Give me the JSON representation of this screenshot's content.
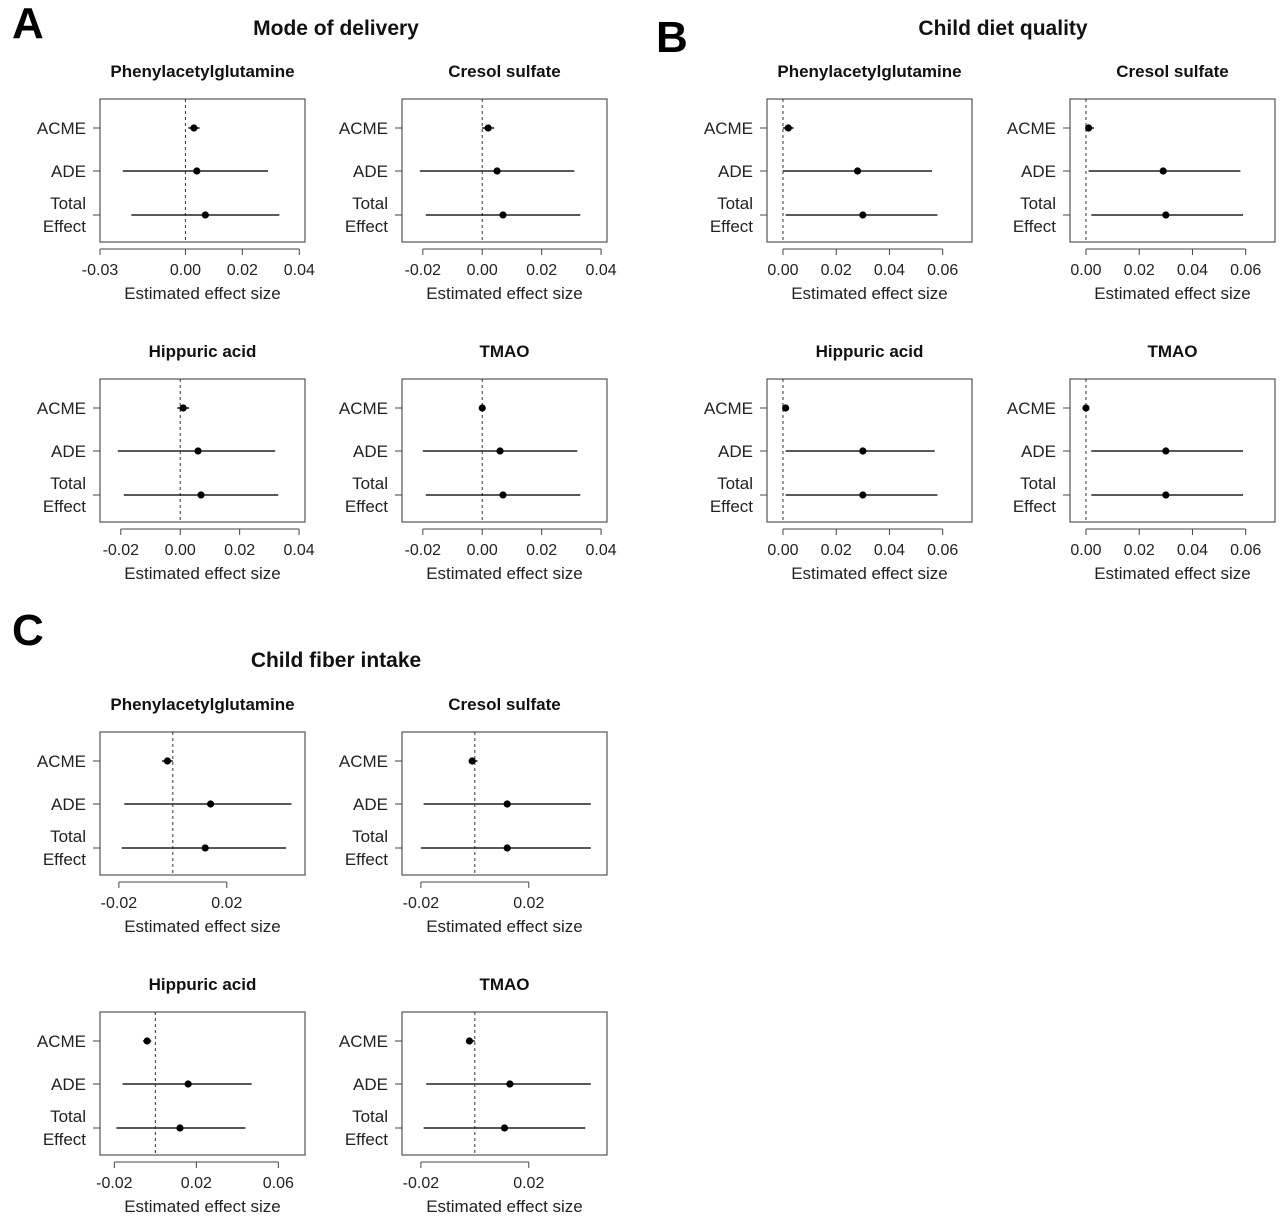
{
  "panels": [
    {
      "label": "A",
      "title": "Mode of delivery"
    },
    {
      "label": "B",
      "title": "Child diet quality"
    },
    {
      "label": "C",
      "title": "Child fiber intake"
    }
  ],
  "chart_data": [
    {
      "panel": "A",
      "type": "scatter",
      "title": "Phenylacetylglutamine",
      "xlabel": "Estimated effect size",
      "xlim": [
        -0.03,
        0.042
      ],
      "xticks": [
        "-0.03",
        "0.00",
        "0.02",
        "0.04"
      ],
      "ref_line": 0,
      "rows": [
        {
          "label": "ACME",
          "est": 0.003,
          "lo": 0.001,
          "hi": 0.005
        },
        {
          "label": "ADE",
          "est": 0.004,
          "lo": -0.022,
          "hi": 0.029
        },
        {
          "label": "Total Effect",
          "est": 0.007,
          "lo": -0.019,
          "hi": 0.033
        }
      ]
    },
    {
      "panel": "A",
      "type": "scatter",
      "title": "Cresol sulfate",
      "xlabel": "Estimated effect size",
      "xlim": [
        -0.027,
        0.042
      ],
      "xticks": [
        "-0.02",
        "0.00",
        "0.02",
        "0.04"
      ],
      "ref_line": 0,
      "rows": [
        {
          "label": "ACME",
          "est": 0.002,
          "lo": 0.0,
          "hi": 0.004
        },
        {
          "label": "ADE",
          "est": 0.005,
          "lo": -0.021,
          "hi": 0.031
        },
        {
          "label": "Total Effect",
          "est": 0.007,
          "lo": -0.019,
          "hi": 0.033
        }
      ]
    },
    {
      "panel": "A",
      "type": "scatter",
      "title": "Hippuric acid",
      "xlabel": "Estimated effect size",
      "xlim": [
        -0.027,
        0.042
      ],
      "xticks": [
        "-0.02",
        "0.00",
        "0.02",
        "0.04"
      ],
      "ref_line": 0,
      "rows": [
        {
          "label": "ACME",
          "est": 0.001,
          "lo": -0.001,
          "hi": 0.003
        },
        {
          "label": "ADE",
          "est": 0.006,
          "lo": -0.021,
          "hi": 0.032
        },
        {
          "label": "Total Effect",
          "est": 0.007,
          "lo": -0.019,
          "hi": 0.033
        }
      ]
    },
    {
      "panel": "A",
      "type": "scatter",
      "title": "TMAO",
      "xlabel": "Estimated effect size",
      "xlim": [
        -0.027,
        0.042
      ],
      "xticks": [
        "-0.02",
        "0.00",
        "0.02",
        "0.04"
      ],
      "ref_line": 0,
      "rows": [
        {
          "label": "ACME",
          "est": 0.0,
          "lo": -0.001,
          "hi": 0.001
        },
        {
          "label": "ADE",
          "est": 0.006,
          "lo": -0.02,
          "hi": 0.032
        },
        {
          "label": "Total Effect",
          "est": 0.007,
          "lo": -0.019,
          "hi": 0.033
        }
      ]
    },
    {
      "panel": "B",
      "type": "scatter",
      "title": "Phenylacetylglutamine",
      "xlabel": "Estimated effect size",
      "xlim": [
        -0.006,
        0.071
      ],
      "xticks": [
        "0.00",
        "0.02",
        "0.04",
        "0.06"
      ],
      "ref_line": 0,
      "rows": [
        {
          "label": "ACME",
          "est": 0.002,
          "lo": 0.0,
          "hi": 0.004
        },
        {
          "label": "ADE",
          "est": 0.028,
          "lo": 0.0,
          "hi": 0.056
        },
        {
          "label": "Total Effect",
          "est": 0.03,
          "lo": 0.001,
          "hi": 0.058
        }
      ]
    },
    {
      "panel": "B",
      "type": "scatter",
      "title": "Cresol sulfate",
      "xlabel": "Estimated effect size",
      "xlim": [
        -0.006,
        0.071
      ],
      "xticks": [
        "0.00",
        "0.02",
        "0.04",
        "0.06"
      ],
      "ref_line": 0,
      "rows": [
        {
          "label": "ACME",
          "est": 0.001,
          "lo": 0.0,
          "hi": 0.003
        },
        {
          "label": "ADE",
          "est": 0.029,
          "lo": 0.001,
          "hi": 0.058
        },
        {
          "label": "Total Effect",
          "est": 0.03,
          "lo": 0.002,
          "hi": 0.059
        }
      ]
    },
    {
      "panel": "B",
      "type": "scatter",
      "title": "Hippuric acid",
      "xlabel": "Estimated effect size",
      "xlim": [
        -0.006,
        0.071
      ],
      "xticks": [
        "0.00",
        "0.02",
        "0.04",
        "0.06"
      ],
      "ref_line": 0,
      "rows": [
        {
          "label": "ACME",
          "est": 0.001,
          "lo": 0.0,
          "hi": 0.002
        },
        {
          "label": "ADE",
          "est": 0.03,
          "lo": 0.001,
          "hi": 0.057
        },
        {
          "label": "Total Effect",
          "est": 0.03,
          "lo": 0.001,
          "hi": 0.058
        }
      ]
    },
    {
      "panel": "B",
      "type": "scatter",
      "title": "TMAO",
      "xlabel": "Estimated effect size",
      "xlim": [
        -0.006,
        0.071
      ],
      "xticks": [
        "0.00",
        "0.02",
        "0.04",
        "0.06"
      ],
      "ref_line": 0,
      "rows": [
        {
          "label": "ACME",
          "est": 0.0,
          "lo": -0.001,
          "hi": 0.001
        },
        {
          "label": "ADE",
          "est": 0.03,
          "lo": 0.002,
          "hi": 0.059
        },
        {
          "label": "Total Effect",
          "est": 0.03,
          "lo": 0.002,
          "hi": 0.059
        }
      ]
    },
    {
      "panel": "C",
      "type": "scatter",
      "title": "Phenylacetylglutamine",
      "xlabel": "Estimated effect size",
      "xlim": [
        -0.027,
        0.049
      ],
      "xticks": [
        "-0.02",
        "0.02"
      ],
      "tick_values": [
        -0.02,
        0.02
      ],
      "ref_line": 0,
      "rows": [
        {
          "label": "ACME",
          "est": -0.002,
          "lo": -0.004,
          "hi": 0.0
        },
        {
          "label": "ADE",
          "est": 0.014,
          "lo": -0.018,
          "hi": 0.044
        },
        {
          "label": "Total Effect",
          "est": 0.012,
          "lo": -0.019,
          "hi": 0.042
        }
      ]
    },
    {
      "panel": "C",
      "type": "scatter",
      "title": "Cresol sulfate",
      "xlabel": "Estimated effect size",
      "xlim": [
        -0.027,
        0.049
      ],
      "xticks": [
        "-0.02",
        "0.02"
      ],
      "tick_values": [
        -0.02,
        0.02
      ],
      "ref_line": 0,
      "rows": [
        {
          "label": "ACME",
          "est": -0.001,
          "lo": -0.002,
          "hi": 0.001
        },
        {
          "label": "ADE",
          "est": 0.012,
          "lo": -0.019,
          "hi": 0.043
        },
        {
          "label": "Total Effect",
          "est": 0.012,
          "lo": -0.02,
          "hi": 0.043
        }
      ]
    },
    {
      "panel": "C",
      "type": "scatter",
      "title": "Hippuric acid",
      "xlabel": "Estimated effect size",
      "xlim": [
        -0.027,
        0.073
      ],
      "xticks": [
        "-0.02",
        "0.02",
        "0.06"
      ],
      "tick_values": [
        -0.02,
        0.02,
        0.06
      ],
      "ref_line": 0,
      "rows": [
        {
          "label": "ACME",
          "est": -0.004,
          "lo": -0.006,
          "hi": -0.002
        },
        {
          "label": "ADE",
          "est": 0.016,
          "lo": -0.016,
          "hi": 0.047
        },
        {
          "label": "Total Effect",
          "est": 0.012,
          "lo": -0.019,
          "hi": 0.044
        }
      ]
    },
    {
      "panel": "C",
      "type": "scatter",
      "title": "TMAO",
      "xlabel": "Estimated effect size",
      "xlim": [
        -0.027,
        0.049
      ],
      "xticks": [
        "-0.02",
        "0.02"
      ],
      "tick_values": [
        -0.02,
        0.02
      ],
      "ref_line": 0,
      "rows": [
        {
          "label": "ACME",
          "est": -0.002,
          "lo": -0.003,
          "hi": 0.0
        },
        {
          "label": "ADE",
          "est": 0.013,
          "lo": -0.018,
          "hi": 0.043
        },
        {
          "label": "Total Effect",
          "est": 0.011,
          "lo": -0.019,
          "hi": 0.041
        }
      ]
    }
  ]
}
